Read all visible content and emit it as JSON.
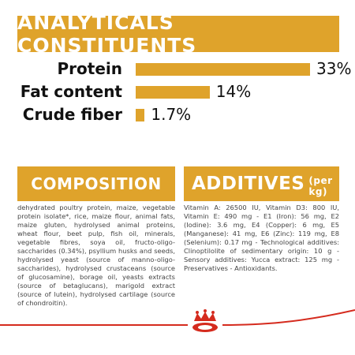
{
  "chart_data": {
    "type": "bar",
    "orientation": "horizontal",
    "title": "ANALYTICALS CONSTITUENTS",
    "categories": [
      "Protein",
      "Fat content",
      "Crude fiber"
    ],
    "values": [
      33,
      14,
      1.7
    ],
    "value_labels": [
      "33%",
      "14%",
      "1.7%"
    ],
    "color": "#dfa32b"
  },
  "composition": {
    "title": "COMPOSITION",
    "text": "dehydrated poultry protein, maize, vegetable protein isolate*, rice, maize flour, animal fats, maize gluten, hydrolysed animal proteins, wheat flour, beet pulp, fish oil, minerals, vegetable fibres, soya oil, fructo-oligo-saccharides (0.34%), psyllium husks and seeds, hydrolysed yeast (source of manno-oligo-saccharides), hydrolysed crustaceans (source of glucosamine), borage oil, yeasts extracts (source of betaglucans), marigold extract (source of lutein), hydrolysed cartilage (source of chondroitin)."
  },
  "additives": {
    "title": "ADDITIVES",
    "unit": "(per kg)",
    "text": "Vitamin A: 26500 IU, Vitamin D3: 800 IU, Vitamin E: 490 mg - E1 (Iron): 56 mg, E2 (Iodine): 3.6 mg, E4 (Copper): 6 mg, E5 (Manganese): 41 mg, E6 (Zinc): 119 mg, E8 (Selenium): 0.17 mg - Technological additives: Clinoptilolite of sedimentary origin: 10 g - Sensory additives: Yucca extract: 125 mg - Preservatives - Antioxidants."
  }
}
